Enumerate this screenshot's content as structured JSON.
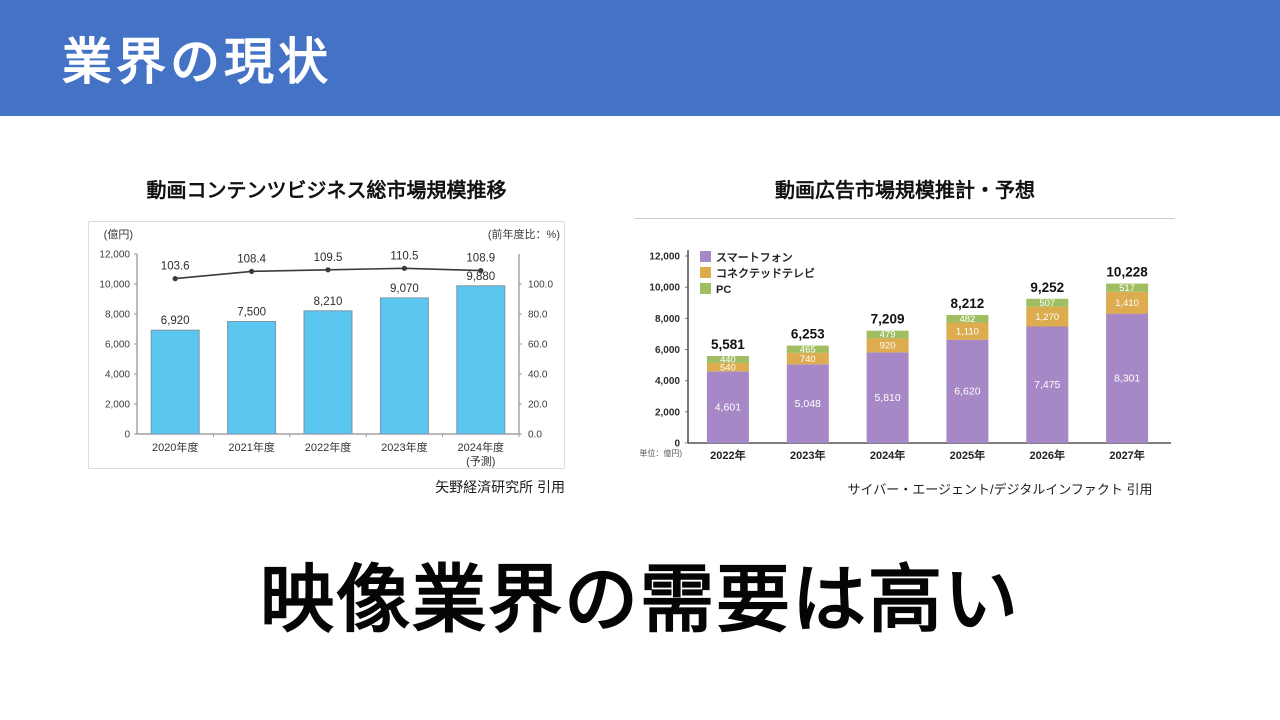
{
  "slide": {
    "header": {
      "title": "業界の現状"
    },
    "conclusion": "映像業界の需要は高い",
    "colors": {
      "header_bg": "#4472C4",
      "header_text": "#FFFFFF",
      "conclusion_text": "#050505"
    }
  },
  "chart_data": [
    {
      "type": "bar",
      "subtype": "bar+line-combo",
      "title": "動画コンテンツビジネス総市場規模推移",
      "source": "矢野経済研究所 引用",
      "left_axis_label": "(億円)",
      "right_axis_label": "(前年度比：%)",
      "categories": [
        "2020年度",
        "2021年度",
        "2022年度",
        "2023年度",
        "2024年度"
      ],
      "category_notes": [
        "",
        "",
        "",
        "",
        "(予測)"
      ],
      "bars": {
        "name": "総市場規模",
        "values": [
          6920,
          7500,
          8210,
          9070,
          9880
        ],
        "labels": [
          "6,920",
          "7,500",
          "8,210",
          "9,070",
          "9,880"
        ],
        "color": "#5BC6F0",
        "border_color": "#7F96A6"
      },
      "line": {
        "name": "前年度比",
        "values": [
          103.6,
          108.4,
          109.5,
          110.5,
          108.9
        ],
        "labels": [
          "103.6",
          "108.4",
          "109.5",
          "110.5",
          "108.9"
        ],
        "color": "#3A3A3A"
      },
      "left_axis": {
        "ticks": [
          "12,000",
          "10,000",
          "8,000",
          "6,000",
          "4,000",
          "2,000",
          "0"
        ],
        "min": 0,
        "max": 12000
      },
      "right_axis": {
        "ticks": [
          "100.0",
          "80.0",
          "60.0",
          "40.0",
          "20.0",
          "0.0"
        ],
        "tick_values": [
          100,
          80,
          60,
          40,
          20,
          0
        ],
        "min": 0,
        "max": 120
      },
      "grid": false,
      "legend_position": "none"
    },
    {
      "type": "bar",
      "subtype": "stacked-bar",
      "title": "動画広告市場規模推計・予想",
      "source": "サイバー・エージェント/デジタルインファクト 引用",
      "unit_label": "(単位：億円)",
      "categories": [
        "2022年",
        "2023年",
        "2024年",
        "2025年",
        "2026年",
        "2027年"
      ],
      "series": [
        {
          "name": "スマートフォン",
          "color": "#A688C6",
          "values": [
            4601,
            5048,
            5810,
            6620,
            7475,
            8301
          ],
          "labels": [
            "4,601",
            "5,048",
            "5,810",
            "6,620",
            "7,475",
            "8,301"
          ]
        },
        {
          "name": "コネクテッドテレビ",
          "color": "#DCAC4E",
          "values": [
            540,
            740,
            920,
            1110,
            1270,
            1410
          ],
          "labels": [
            "540",
            "740",
            "920",
            "1,110",
            "1,270",
            "1,410"
          ]
        },
        {
          "name": "PC",
          "color": "#9FBE62",
          "values": [
            440,
            465,
            479,
            482,
            507,
            517
          ],
          "labels": [
            "440",
            "465",
            "479",
            "482",
            "507",
            "517"
          ]
        }
      ],
      "totals": [
        "5,581",
        "6,253",
        "7,209",
        "8,212",
        "9,252",
        "10,228"
      ],
      "y_axis": {
        "ticks": [
          "12,000",
          "10,000",
          "8,000",
          "6,000",
          "4,000",
          "2,000",
          "0"
        ],
        "min": 0,
        "max": 12000
      },
      "grid": false,
      "legend_position": "top-left"
    }
  ]
}
